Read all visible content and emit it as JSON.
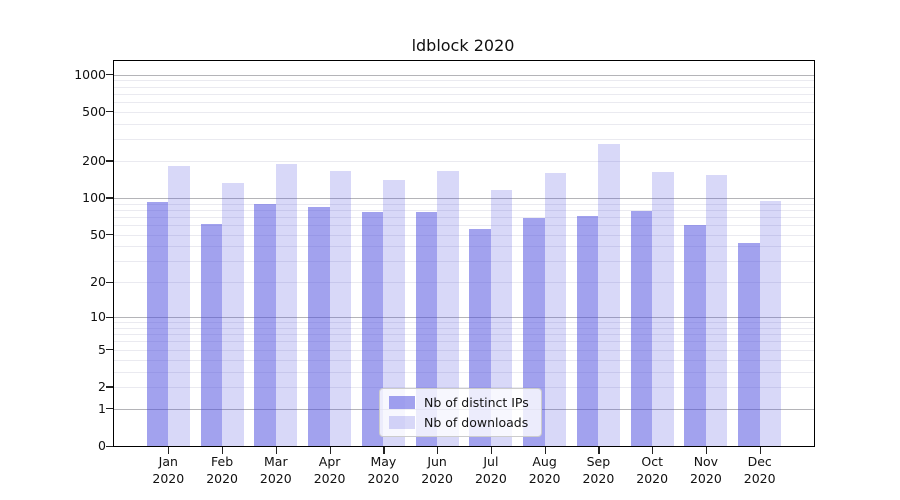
{
  "chart_data": {
    "type": "bar",
    "title": "ldblock 2020",
    "categories": [
      "Jan 2020",
      "Feb 2020",
      "Mar 2020",
      "Apr 2020",
      "May 2020",
      "Jun 2020",
      "Jul 2020",
      "Aug 2020",
      "Sep 2020",
      "Oct 2020",
      "Nov 2020",
      "Dec 2020"
    ],
    "series": [
      {
        "name": "Nb of distinct IPs",
        "color": "rgba(69,69,221,0.5)",
        "values": [
          93,
          61,
          90,
          84,
          77,
          77,
          56,
          68,
          71,
          78,
          60,
          43
        ]
      },
      {
        "name": "Nb of downloads",
        "color": "rgba(69,69,221,0.21)",
        "values": [
          181,
          133,
          189,
          167,
          141,
          167,
          115,
          160,
          275,
          163,
          155,
          94
        ]
      }
    ],
    "y_scale": "log1p",
    "y_ticks": [
      0,
      1,
      2,
      5,
      10,
      20,
      50,
      100,
      200,
      500,
      1000
    ],
    "ylim": [
      0,
      1300
    ],
    "grid": true,
    "legend_position": "lower center",
    "colors": {
      "major_grid": "#b4b4b8",
      "minor_grid": "#eaeaf0",
      "axis": "#000000",
      "text": "#111111"
    }
  }
}
